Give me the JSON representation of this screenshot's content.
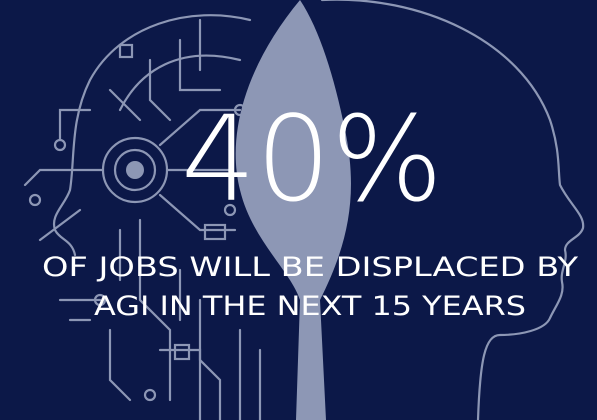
{
  "headline": "40%",
  "caption": [
    "OF JOBS WILL BE DISPLACED BY",
    "AGI IN THE NEXT 15 YEARS"
  ]
}
